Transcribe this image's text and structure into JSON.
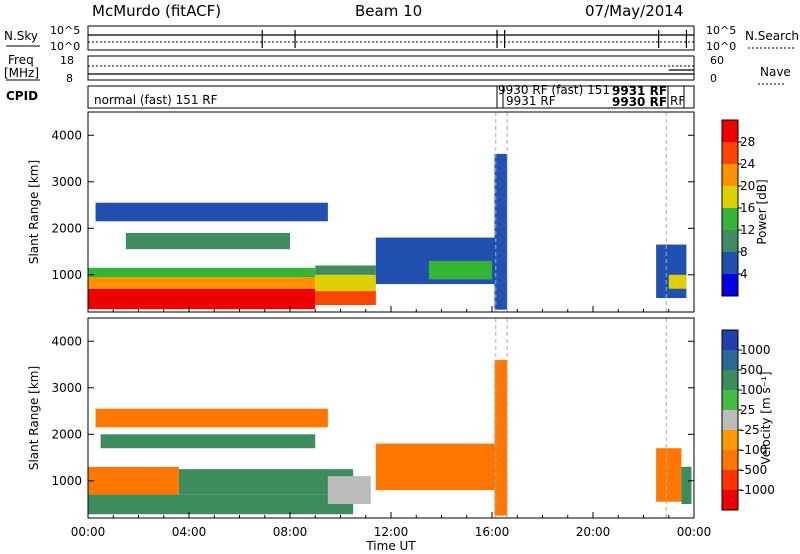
{
  "header": {
    "station": "McMurdo (fitACF)",
    "beam": "Beam 10",
    "date": "07/May/2014"
  },
  "strips": {
    "nsky_label": "N.Sky",
    "nsearch_label": "N.Search",
    "left_top_tick": "10^5",
    "left_bottom_tick": "10^0",
    "right_top_tick": "10^5",
    "right_bottom_tick": "10^0",
    "freq_label_line1": "Freq",
    "freq_label_line2": "[MHz]",
    "freq_top_tick": "18",
    "freq_bottom_tick": "8",
    "nave_label": "Nave",
    "nave_top_tick": "60",
    "nave_bottom_tick": "0",
    "cpid_label": "CPID",
    "cpid_main": "normal (fast) 151 RF",
    "cpid_a": "9930 RF (fast) 151",
    "cpid_b": "9931 RF",
    "cpid_c": "9931 RF",
    "cpid_d": "9930 RF",
    "cpid_e": "RF"
  },
  "colors": {
    "power": [
      "#0000e6",
      "#2050b0",
      "#408c60",
      "#35b535",
      "#ddd000",
      "#ff9000",
      "#ff4400",
      "#ee0000"
    ],
    "velocity": [
      "#2040b0",
      "#2a6a9a",
      "#3c8c5c",
      "#44bb44",
      "#bbbbbb",
      "#ff9900",
      "#ff7700",
      "#ff3300",
      "#ee0000"
    ],
    "axis": "#000000",
    "dashed_marker": "#aaaaaa"
  },
  "chart_data": [
    {
      "type": "heatmap",
      "title": "",
      "xlabel": "",
      "ylabel": "Slant Range [km]",
      "x_ticks": [
        "00:00",
        "04:00",
        "08:00",
        "12:00",
        "16:00",
        "20:00",
        "00:00"
      ],
      "x_range_hours": [
        0,
        24
      ],
      "y_ticks": [
        1000,
        2000,
        3000,
        4000
      ],
      "ylim": [
        200,
        4500
      ],
      "colorbar_label": "Power [dB]",
      "colorbar_ticks": [
        "4",
        "8",
        "12",
        "16",
        "20",
        "24",
        "28"
      ],
      "colorbar_range": [
        0,
        32
      ],
      "regions": [
        {
          "t0": 0.0,
          "t1": 9.0,
          "r0": 260,
          "r1": 700,
          "value": 28
        },
        {
          "t0": 0.0,
          "t1": 9.0,
          "r0": 700,
          "r1": 950,
          "value": 20
        },
        {
          "t0": 0.0,
          "t1": 9.0,
          "r0": 950,
          "r1": 1150,
          "value": 12
        },
        {
          "t0": 9.0,
          "t1": 11.4,
          "r0": 350,
          "r1": 650,
          "value": 26
        },
        {
          "t0": 9.0,
          "t1": 11.4,
          "r0": 650,
          "r1": 1000,
          "value": 18
        },
        {
          "t0": 9.0,
          "t1": 11.4,
          "r0": 1000,
          "r1": 1200,
          "value": 9
        },
        {
          "t0": 11.4,
          "t1": 16.5,
          "r0": 800,
          "r1": 1800,
          "value": 7
        },
        {
          "t0": 13.5,
          "t1": 16.0,
          "r0": 900,
          "r1": 1300,
          "value": 14
        },
        {
          "t0": 0.3,
          "t1": 9.5,
          "r0": 2150,
          "r1": 2550,
          "value": 7
        },
        {
          "t0": 1.5,
          "t1": 8.0,
          "r0": 1550,
          "r1": 1900,
          "value": 9
        },
        {
          "t0": 16.1,
          "t1": 16.6,
          "r0": 250,
          "r1": 3600,
          "value": 6
        },
        {
          "t0": 22.5,
          "t1": 23.7,
          "r0": 500,
          "r1": 1650,
          "value": 7
        },
        {
          "t0": 23.0,
          "t1": 23.7,
          "r0": 700,
          "r1": 1000,
          "value": 18
        }
      ]
    },
    {
      "type": "heatmap",
      "title": "",
      "xlabel": "Time UT",
      "ylabel": "Slant Range [km]",
      "x_ticks": [
        "00:00",
        "04:00",
        "08:00",
        "12:00",
        "16:00",
        "20:00",
        "00:00"
      ],
      "x_range_hours": [
        0,
        24
      ],
      "y_ticks": [
        1000,
        2000,
        3000,
        4000
      ],
      "ylim": [
        200,
        4500
      ],
      "colorbar_label": "Velocity [m s⁻¹]",
      "colorbar_ticks": [
        "1000",
        "500",
        "100",
        "25",
        "-25",
        "-100",
        "-500",
        "-1000"
      ],
      "regions": [
        {
          "t0": 0.0,
          "t1": 3.6,
          "r0": 400,
          "r1": 1300,
          "value": -100
        },
        {
          "t0": 0.0,
          "t1": 10.5,
          "r0": 280,
          "r1": 700,
          "value": 200
        },
        {
          "t0": 3.6,
          "t1": 10.5,
          "r0": 700,
          "r1": 1250,
          "value": 200
        },
        {
          "t0": 9.5,
          "t1": 11.2,
          "r0": 500,
          "r1": 1100,
          "value": 0
        },
        {
          "t0": 11.4,
          "t1": 16.4,
          "r0": 800,
          "r1": 1800,
          "value": -100
        },
        {
          "t0": 0.5,
          "t1": 9.0,
          "r0": 1700,
          "r1": 2000,
          "value": 100
        },
        {
          "t0": 0.3,
          "t1": 9.5,
          "r0": 2150,
          "r1": 2550,
          "value": -100
        },
        {
          "t0": 16.1,
          "t1": 16.6,
          "r0": 250,
          "r1": 3600,
          "value": -100
        },
        {
          "t0": 22.5,
          "t1": 23.5,
          "r0": 550,
          "r1": 1700,
          "value": -100
        },
        {
          "t0": 23.5,
          "t1": 23.9,
          "r0": 500,
          "r1": 1300,
          "value": 200
        }
      ]
    }
  ]
}
